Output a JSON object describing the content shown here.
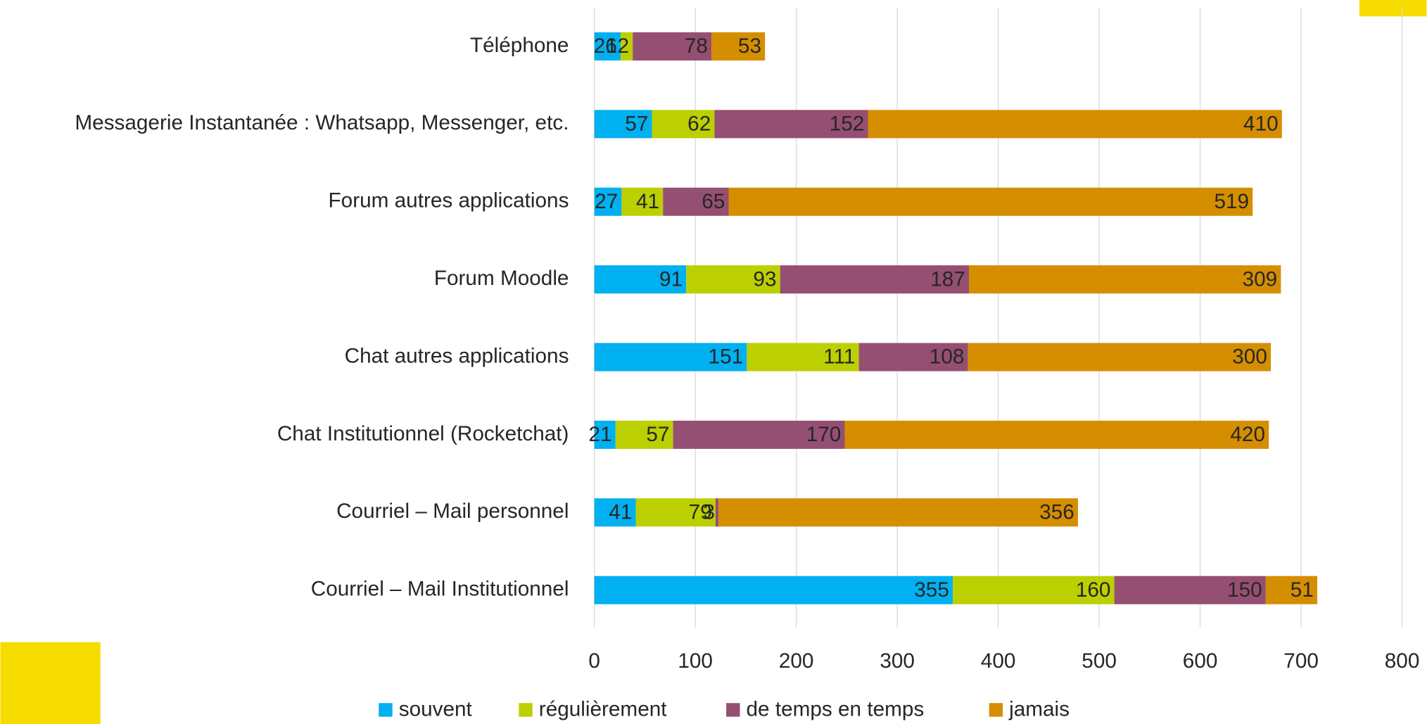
{
  "chart_data": {
    "type": "bar",
    "orientation": "horizontal",
    "stacked": true,
    "grid": true,
    "legend": "bottom",
    "categories": [
      "Téléphone",
      "Messagerie Instantanée : Whatsapp, Messenger, etc.",
      "Forum autres applications",
      "Forum Moodle",
      "Chat autres applications",
      "Chat Institutionnel (Rocketchat)",
      "Courriel – Mail personnel",
      "Courriel – Mail Institutionnel"
    ],
    "series": [
      {
        "name": "souvent",
        "color": "#00b0f0",
        "values": [
          26,
          57,
          27,
          91,
          151,
          21,
          41,
          355
        ]
      },
      {
        "name": "régulièrement",
        "color": "#bccf00",
        "values": [
          12,
          62,
          41,
          93,
          111,
          57,
          79,
          160
        ]
      },
      {
        "name": "de temps en temps",
        "color": "#954f72",
        "values": [
          78,
          152,
          65,
          187,
          108,
          170,
          3,
          150
        ]
      },
      {
        "name": "jamais",
        "color": "#d58e00",
        "values": [
          53,
          410,
          519,
          309,
          300,
          420,
          356,
          51
        ]
      }
    ],
    "xlim": [
      0,
      800
    ],
    "xticks": [
      0,
      100,
      200,
      300,
      400,
      500,
      600,
      700,
      800
    ]
  }
}
